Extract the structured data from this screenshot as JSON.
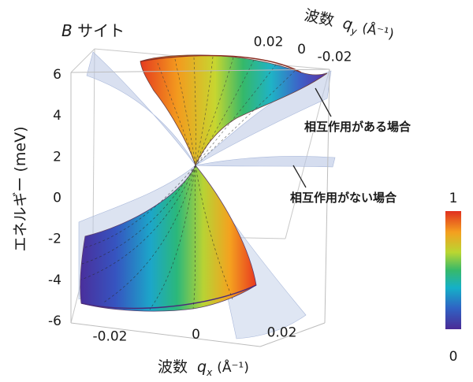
{
  "chart_data": {
    "type": "surface",
    "title": "B サイト",
    "title_parts": {
      "italic": "B",
      "rest": " サイト"
    },
    "zlabel": "エネルギー (meV)",
    "xlabel": {
      "prefix": "波数",
      "var": "q",
      "sub": "x",
      "unit": "(Å⁻¹)"
    },
    "ylabel": {
      "prefix": "波数",
      "var": "q",
      "sub": "y",
      "unit": "(Å⁻¹)"
    },
    "x_ticks": [
      "-0.02",
      "0",
      "0.02"
    ],
    "y_ticks": [
      "0.02",
      "0",
      "-0.02"
    ],
    "z_ticks": [
      "6",
      "4",
      "2",
      "0",
      "-2",
      "-4",
      "-6"
    ],
    "xlim": [
      -0.03,
      0.03
    ],
    "ylim": [
      -0.025,
      0.025
    ],
    "zlim": [
      -6,
      6
    ],
    "dirac_point": {
      "qx": 0,
      "qy": 0,
      "energy": 2
    },
    "series": [
      {
        "name": "相互作用がある場合",
        "style": "colored by weight 0 to 1 (rainbow)"
      },
      {
        "name": "相互作用がない場合",
        "style": "translucent light blue"
      }
    ],
    "colorbar": {
      "min_label": "0",
      "max_label": "1",
      "range": [
        0,
        1
      ]
    },
    "box": true,
    "colors": {
      "noninteracting": "#b9c7e4",
      "box_edges": "#c8c8c8",
      "leader": "#222222"
    }
  }
}
